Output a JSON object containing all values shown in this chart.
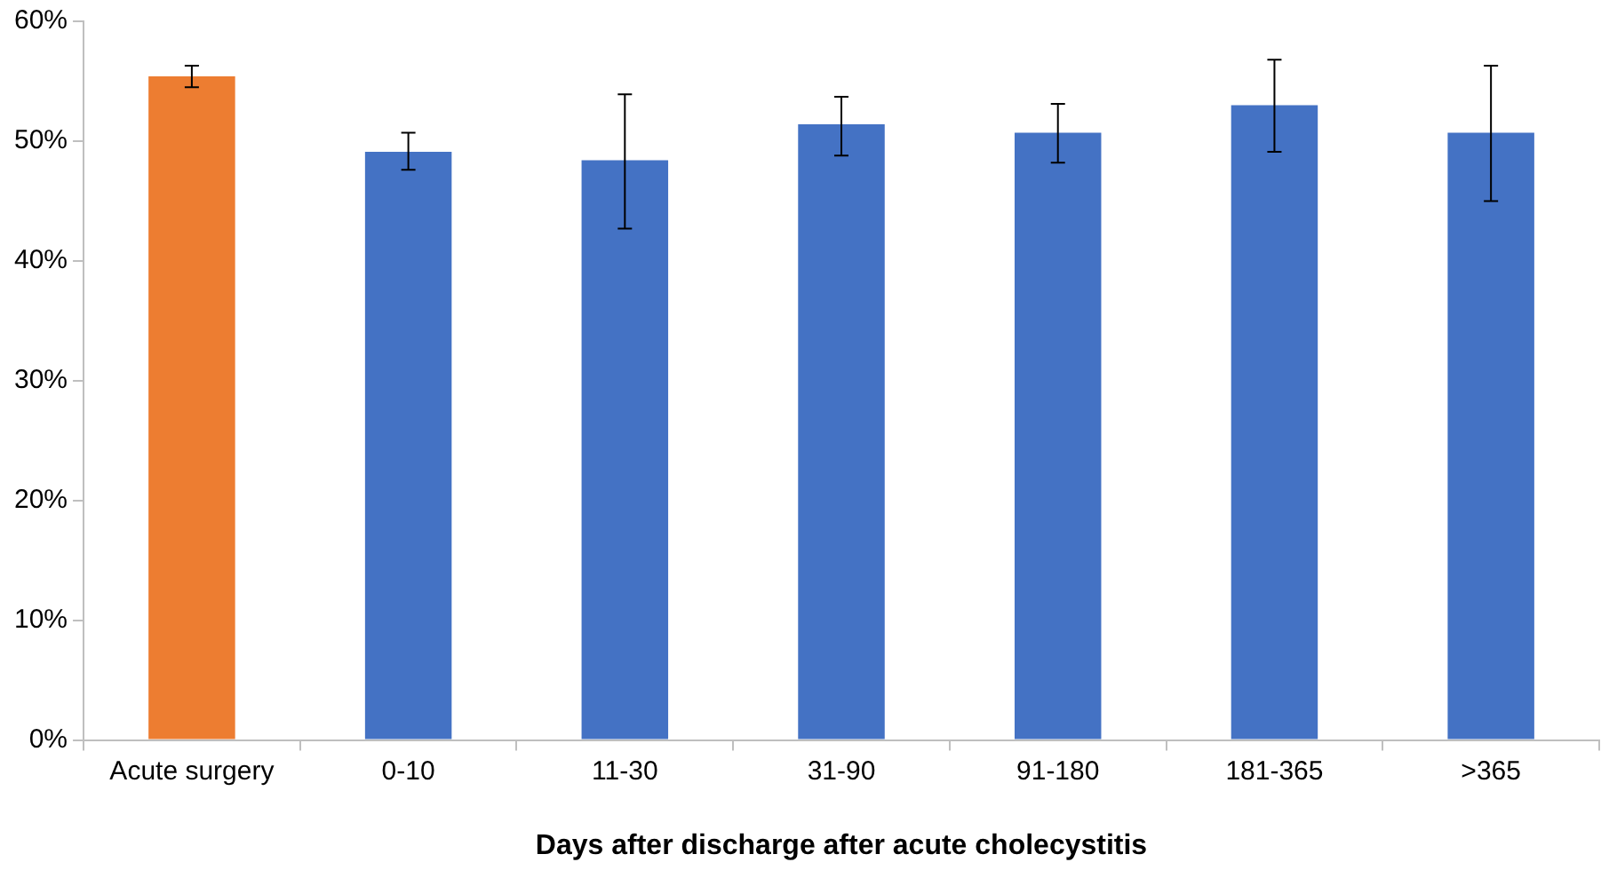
{
  "chart_data": {
    "type": "bar",
    "xlabel": "Days after discharge after acute cholecystitis",
    "categories": [
      "Acute surgery",
      "0-10",
      "11-30",
      "31-90",
      "91-180",
      "181-365",
      ">365"
    ],
    "values": [
      55.4,
      49.1,
      48.4,
      51.4,
      50.7,
      53.0,
      50.7
    ],
    "colors": [
      "#ed7d31",
      "#4472c4",
      "#4472c4",
      "#4472c4",
      "#4472c4",
      "#4472c4",
      "#4472c4"
    ],
    "errors": [
      [
        54.5,
        56.3
      ],
      [
        47.6,
        50.7
      ],
      [
        42.7,
        53.9
      ],
      [
        48.8,
        53.7
      ],
      [
        48.2,
        53.1
      ],
      [
        49.1,
        56.8
      ],
      [
        45.0,
        56.3
      ]
    ],
    "ylim": [
      0,
      60
    ],
    "yticks": [
      {
        "value": 0,
        "label": "0%"
      },
      {
        "value": 10,
        "label": "10%"
      },
      {
        "value": 20,
        "label": "20%"
      },
      {
        "value": 30,
        "label": "30%"
      },
      {
        "value": 40,
        "label": "40%"
      },
      {
        "value": 50,
        "label": "50%"
      },
      {
        "value": 60,
        "label": "60%"
      }
    ],
    "grid": false,
    "legend": false
  }
}
